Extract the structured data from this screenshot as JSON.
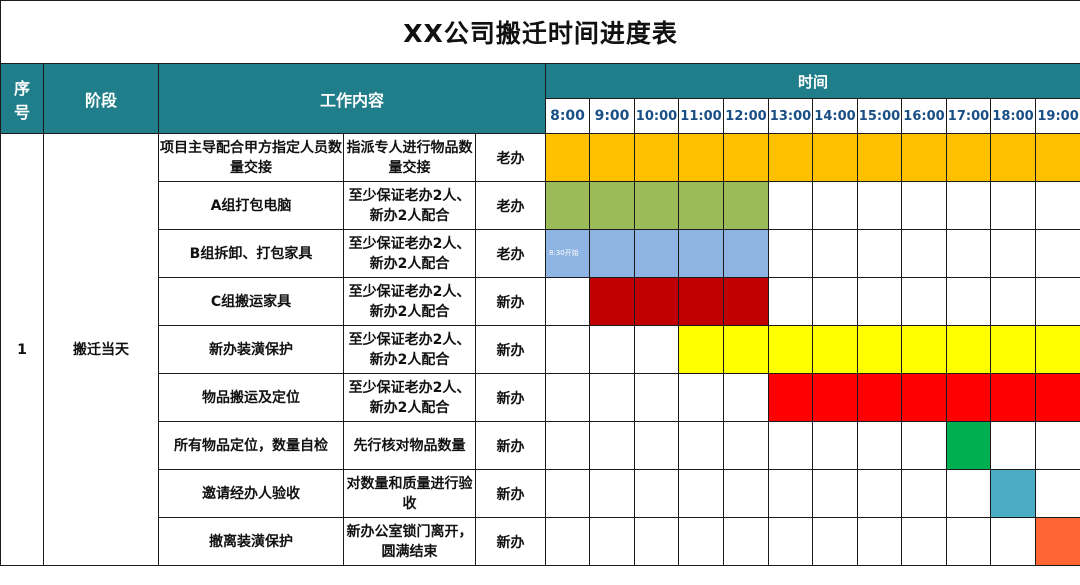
{
  "title": "XX公司搬迁时间进度表",
  "headers": {
    "seq": "序号",
    "stage": "阶段",
    "content": "工作内容",
    "time": "时间"
  },
  "time_slots": [
    "8:00",
    "9:00",
    "10:00",
    "11:00",
    "12:00",
    "13:00",
    "14:00",
    "15:00",
    "16:00",
    "17:00",
    "18:00",
    "19:00"
  ],
  "stage_row": {
    "seq": "1",
    "stage": "搬迁当天"
  },
  "tasks": [
    {
      "task": "项目主导配合甲方指定人员数量交接",
      "req": "指派专人进行物品数量交接",
      "office": "老办",
      "start": 0,
      "end": 12,
      "color": "#ffc000",
      "note": ""
    },
    {
      "task": "A组打包电脑",
      "req": "至少保证老办2人、新办2人配合",
      "office": "老办",
      "start": 0,
      "end": 5,
      "color": "#9bbb59",
      "note": ""
    },
    {
      "task": "B组拆卸、打包家具",
      "req": "至少保证老办2人、新办2人配合",
      "office": "老办",
      "start": 0,
      "end": 5,
      "color": "#8db4e2",
      "note": "8:30开始"
    },
    {
      "task": "C组搬运家具",
      "req": "至少保证老办2人、新办2人配合",
      "office": "新办",
      "start": 1,
      "end": 5,
      "color": "#c00000",
      "note": ""
    },
    {
      "task": "新办装潢保护",
      "req": "至少保证老办2人、新办2人配合",
      "office": "新办",
      "start": 3,
      "end": 12,
      "color": "#ffff00",
      "note": ""
    },
    {
      "task": "物品搬运及定位",
      "req": "至少保证老办2人、新办2人配合",
      "office": "新办",
      "start": 5,
      "end": 12,
      "color": "#ff0000",
      "note": ""
    },
    {
      "task": "所有物品定位，数量自检",
      "req": "先行核对物品数量",
      "office": "新办",
      "start": 9,
      "end": 10,
      "color": "#00b050",
      "note": ""
    },
    {
      "task": "邀请经办人验收",
      "req": "对数量和质量进行验收",
      "office": "新办",
      "start": 10,
      "end": 11,
      "color": "#4bacc6",
      "note": ""
    },
    {
      "task": "撤离装潢保护",
      "req": "新办公室锁门离开，圆满结束",
      "office": "新办",
      "start": 11,
      "end": 12,
      "color": "#ff6633",
      "note": ""
    }
  ]
}
